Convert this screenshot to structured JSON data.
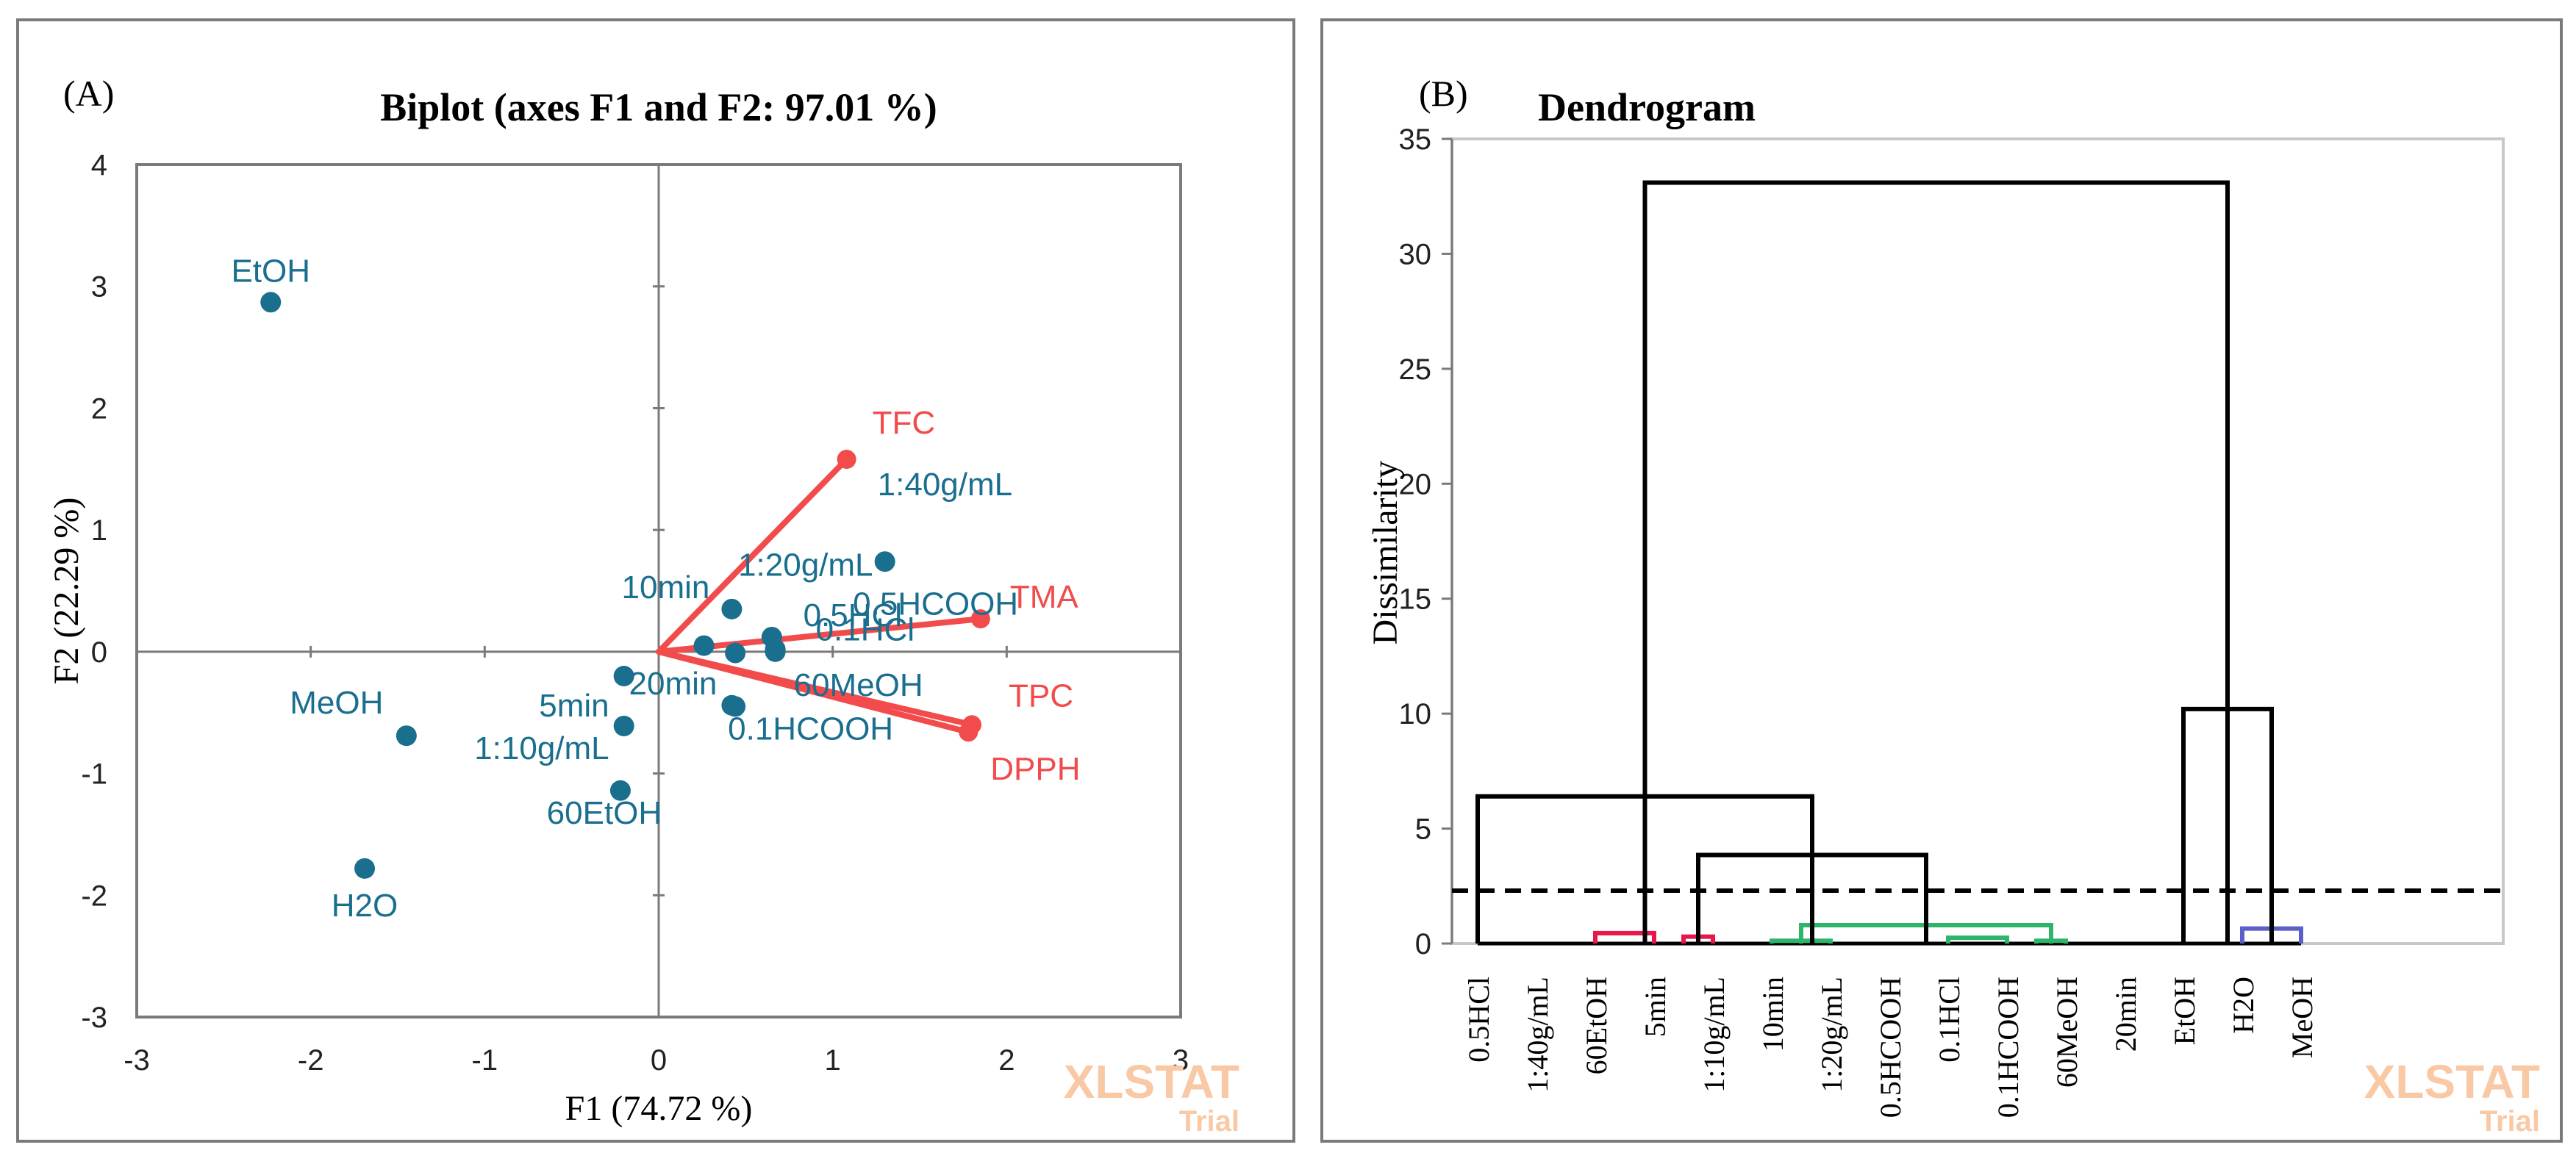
{
  "chart_data": [
    {
      "type": "scatter",
      "panel_label": "(A)",
      "title": "Biplot (axes F1 and F2: 97.01 %)",
      "xlabel": "F1 (74.72 %)",
      "ylabel": "F2 (22.29 %)",
      "xlim": [
        -3,
        3
      ],
      "ylim": [
        -3,
        4
      ],
      "xticks": [
        -3,
        -2,
        -1,
        0,
        1,
        2,
        3
      ],
      "yticks": [
        -3,
        -2,
        -1,
        0,
        1,
        2,
        3,
        4
      ],
      "observations": [
        {
          "label": "EtOH",
          "x": -2.23,
          "y": 2.87
        },
        {
          "label": "MeOH",
          "x": -1.45,
          "y": -0.69
        },
        {
          "label": "H2O",
          "x": -1.69,
          "y": -1.78
        },
        {
          "label": "5min",
          "x": -0.2,
          "y": -0.2
        },
        {
          "label": "1:10g/mL",
          "x": -0.2,
          "y": -0.61
        },
        {
          "label": "60EtOH",
          "x": -0.22,
          "y": -1.14
        },
        {
          "label": "10min",
          "x": 0.42,
          "y": 0.35
        },
        {
          "label": "1:20g/mL",
          "x": 0.26,
          "y": 0.05
        },
        {
          "label": "1:40g/mL",
          "x": 1.3,
          "y": 0.74
        },
        {
          "label": "0.5HCl",
          "x": 0.65,
          "y": 0.12
        },
        {
          "label": "0.5HCOOH",
          "x": 0.44,
          "y": -0.01
        },
        {
          "label": "0.1HCl",
          "x": 0.67,
          "y": 0.02
        },
        {
          "label": "60MeOH",
          "x": 0.67,
          "y": 0.0
        },
        {
          "label": "20min",
          "x": 0.42,
          "y": -0.44
        },
        {
          "label": "0.1HCOOH",
          "x": 0.44,
          "y": -0.45
        }
      ],
      "variables": [
        {
          "label": "TFC",
          "x": 1.08,
          "y": 1.58
        },
        {
          "label": "TMA",
          "x": 1.85,
          "y": 0.27
        },
        {
          "label": "TPC",
          "x": 1.8,
          "y": -0.6
        },
        {
          "label": "DPPH",
          "x": 1.78,
          "y": -0.66
        }
      ],
      "watermark": {
        "main": "XLSTAT",
        "sub": "Trial"
      },
      "colors": {
        "observations": "#1a6e8e",
        "variables": "#f24b4b",
        "axes": "#7a7a7a"
      }
    },
    {
      "type": "dendrogram",
      "panel_label": "(B)",
      "title": "Dendrogram",
      "ylabel": "Dissimilarity",
      "ylim": [
        0,
        35
      ],
      "yticks": [
        0,
        5,
        10,
        15,
        20,
        25,
        30,
        35
      ],
      "leaves": [
        "0.5HCl",
        "1:40g/mL",
        "60EtOH",
        "5min",
        "1:10g/mL",
        "10min",
        "1:20g/mL",
        "0.5HCOOH",
        "0.1HCl",
        "0.1HCOOH",
        "60MeOH",
        "20min",
        "EtOH",
        "H2O",
        "MeOH"
      ],
      "truncation_level": 2.3,
      "links": [
        {
          "l": 2,
          "r": 3,
          "h": 0.45,
          "color": "#e8174a"
        },
        {
          "l": 3.5,
          "r": 4,
          "h": 0.3,
          "color": "#e8174a"
        },
        {
          "l": 5,
          "r": 6,
          "h": 0.12,
          "color": "#2db56a"
        },
        {
          "l": 8,
          "r": 9,
          "h": 0.25,
          "color": "#2db56a"
        },
        {
          "l": 9.5,
          "r": 10,
          "h": 0.12,
          "color": "#2db56a"
        },
        {
          "l": 5.5,
          "r": 9.75,
          "h": 0.8,
          "color": "#2db56a"
        },
        {
          "l": 13,
          "r": 14,
          "h": 0.65,
          "color": "#5b5fc7"
        },
        {
          "l": 3.75,
          "r": 7.625,
          "h": 3.85,
          "color": "#000000"
        },
        {
          "l": 0,
          "r": 5.6875,
          "h": 6.4,
          "color": "#000000"
        },
        {
          "l": 12,
          "r": 13.5,
          "h": 10.2,
          "color": "#000000"
        },
        {
          "l": 2.84375,
          "r": 12.75,
          "h": 33.1,
          "color": "#000000"
        }
      ],
      "watermark": {
        "main": "XLSTAT",
        "sub": "Trial"
      }
    }
  ]
}
